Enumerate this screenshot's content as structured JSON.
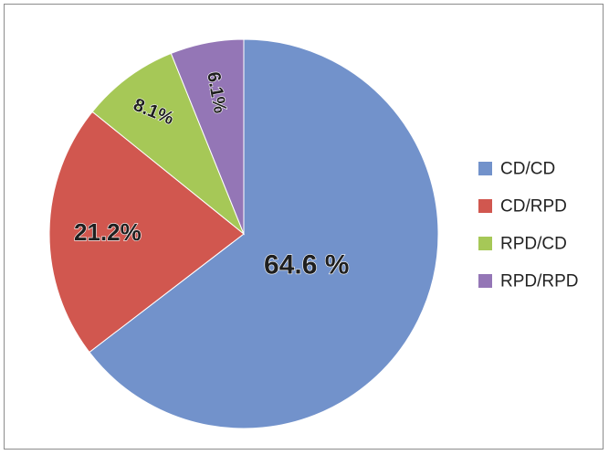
{
  "chart_data": {
    "type": "pie",
    "categories": [
      "CD/CD",
      "CD/RPD",
      "RPD/CD",
      "RPD/RPD"
    ],
    "values": [
      64.6,
      21.2,
      8.1,
      6.1
    ],
    "slice_labels": [
      "64.6 %",
      "21.2%",
      "8.1%",
      "6.1%"
    ],
    "colors": [
      "#7292cb",
      "#d1574f",
      "#a6c857",
      "#9476b6"
    ],
    "start_angle": "12 o'clock",
    "direction": "clockwise",
    "legend": {
      "placement": "right",
      "entries": [
        "CD/CD",
        "CD/RPD",
        "RPD/CD",
        "RPD/RPD"
      ]
    }
  }
}
